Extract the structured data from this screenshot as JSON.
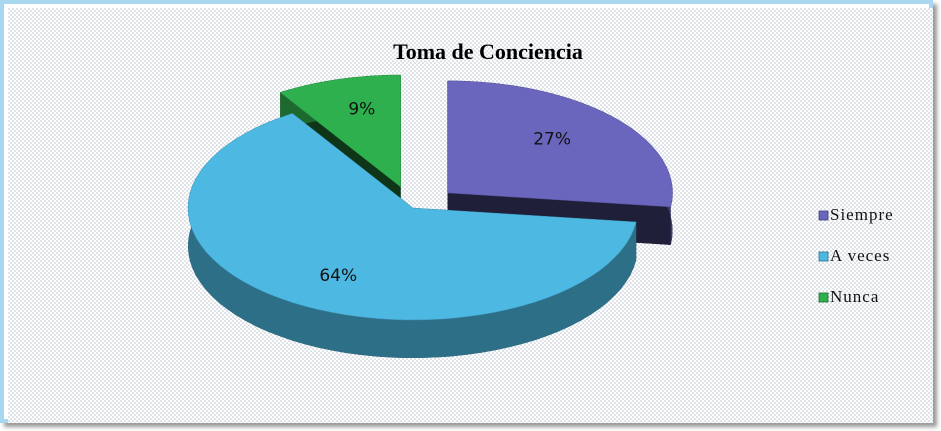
{
  "chart_data": {
    "type": "pie",
    "title": "Toma de Conciencia",
    "categories": [
      "Siempre",
      "A veces",
      "Nunca"
    ],
    "values": [
      27,
      64,
      9
    ],
    "value_labels": [
      "27%",
      "64%",
      "9%"
    ],
    "colors": [
      "#6a66bd",
      "#4db9e3",
      "#2fb04f"
    ],
    "legend": "right"
  }
}
